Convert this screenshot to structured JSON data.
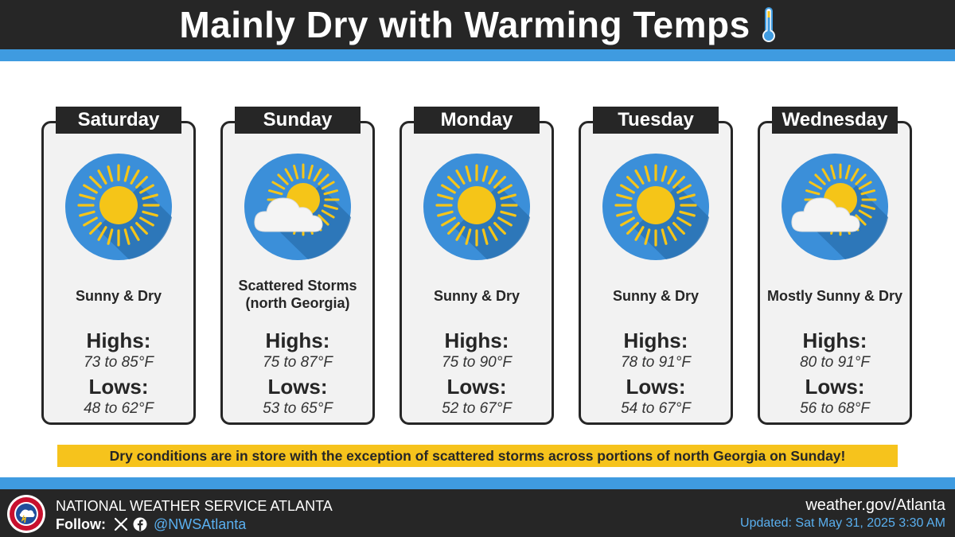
{
  "header": {
    "title": "Mainly Dry with Warming Temps",
    "icon": "thermometer-icon"
  },
  "days": [
    {
      "day": "Saturday",
      "icon": "sunny-icon",
      "condition": "Sunny & Dry",
      "highs_label": "Highs:",
      "highs": "73 to 85°F",
      "lows_label": "Lows:",
      "lows": "48 to 62°F"
    },
    {
      "day": "Sunday",
      "icon": "partly-cloudy-icon",
      "condition": "Scattered Storms (north Georgia)",
      "highs_label": "Highs:",
      "highs": "75 to 87°F",
      "lows_label": "Lows:",
      "lows": "53 to 65°F"
    },
    {
      "day": "Monday",
      "icon": "sunny-icon",
      "condition": "Sunny & Dry",
      "highs_label": "Highs:",
      "highs": "75 to 90°F",
      "lows_label": "Lows:",
      "lows": "52 to 67°F"
    },
    {
      "day": "Tuesday",
      "icon": "sunny-icon",
      "condition": "Sunny & Dry",
      "highs_label": "Highs:",
      "highs": "78 to 91°F",
      "lows_label": "Lows:",
      "lows": "54 to 67°F"
    },
    {
      "day": "Wednesday",
      "icon": "partly-cloudy-icon",
      "condition": "Mostly Sunny & Dry",
      "highs_label": "Highs:",
      "highs": "80 to 91°F",
      "lows_label": "Lows:",
      "lows": "56 to 68°F"
    }
  ],
  "summary": "Dry conditions are in store with the exception of scattered storms across portions of north Georgia on Sunday!",
  "footer": {
    "office": "NATIONAL WEATHER SERVICE ATLANTA",
    "follow_label": "Follow:",
    "social_icons": [
      "x-icon",
      "facebook-icon"
    ],
    "handle": "@NWSAtlanta",
    "website": "weather.gov/Atlanta",
    "updated": "Updated: Sat May 31, 2025 3:30 AM"
  },
  "colors": {
    "dark": "#262626",
    "blue_band": "#3f9be0",
    "icon_circle": "#3b8fd9",
    "sun": "#f5c518",
    "highlight": "#f6c31c",
    "link_blue": "#5ab0f0"
  }
}
